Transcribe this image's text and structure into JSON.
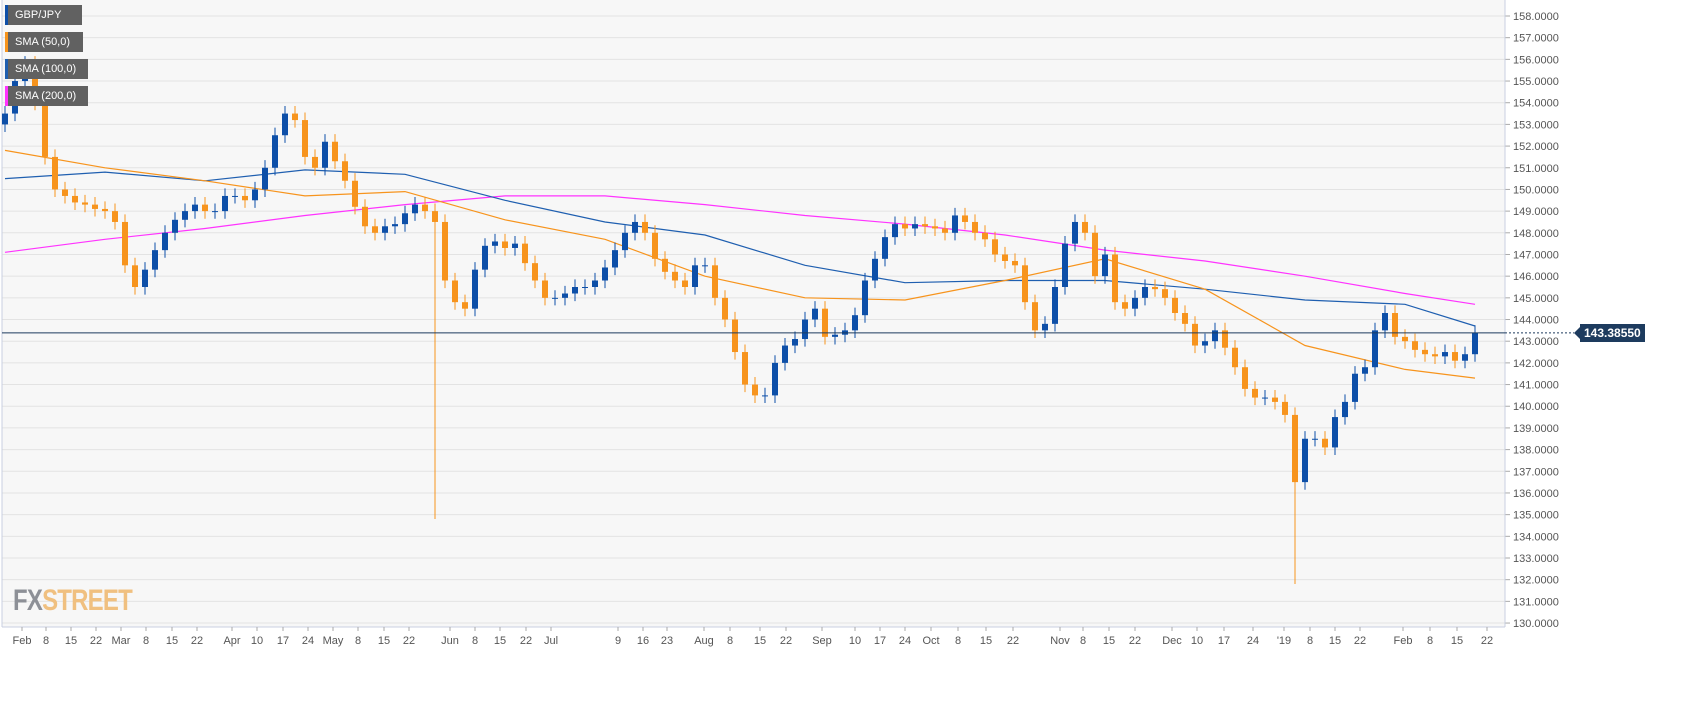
{
  "chart_data": {
    "type": "candlestick",
    "title": "",
    "instrument": "GBP/JPY",
    "legend": [
      {
        "label": "GBP/JPY",
        "color": "#0d4fa8"
      },
      {
        "label": "SMA (50,0)",
        "color": "#f7941d"
      },
      {
        "label": "SMA (100,0)",
        "color": "#1f5fb0"
      },
      {
        "label": "SMA (200,0)",
        "color": "#ff33ff"
      }
    ],
    "legend_placement": "top-left",
    "grid": true,
    "ylim": [
      130,
      158
    ],
    "y_ticks": [
      "130.0000",
      "131.0000",
      "132.0000",
      "133.0000",
      "134.0000",
      "135.0000",
      "136.0000",
      "137.0000",
      "138.0000",
      "139.0000",
      "140.0000",
      "141.0000",
      "142.0000",
      "143.0000",
      "144.0000",
      "145.0000",
      "146.0000",
      "147.0000",
      "148.0000",
      "149.0000",
      "150.0000",
      "151.0000",
      "152.0000",
      "153.0000",
      "154.0000",
      "155.0000",
      "156.0000",
      "157.0000",
      "158.0000"
    ],
    "x_ticks": [
      "Feb",
      "8",
      "15",
      "22",
      "Mar",
      "8",
      "15",
      "22",
      "Apr",
      "10",
      "17",
      "24",
      "May",
      "8",
      "15",
      "22",
      "Jun",
      "8",
      "15",
      "22",
      "Jul",
      "9",
      "16",
      "23",
      "Aug",
      "8",
      "15",
      "22",
      "Sep",
      "10",
      "17",
      "24",
      "Oct",
      "8",
      "15",
      "22",
      "Nov",
      "8",
      "15",
      "22",
      "Dec",
      "10",
      "17",
      "24",
      "'19",
      "8",
      "15",
      "22",
      "Feb",
      "8",
      "15",
      "22"
    ],
    "current_price": "143.38550",
    "colors": {
      "up": "#0d4fa8",
      "down": "#f7941d",
      "sma50": "#f7941d",
      "sma100": "#1f5fb0",
      "sma200": "#ff33ff",
      "price_line": "#1d3b5e"
    },
    "closes": [
      153.5,
      155,
      155.8,
      154,
      151.5,
      150,
      149.7,
      149.4,
      149.3,
      149.1,
      149,
      148.5,
      146.5,
      145.5,
      146.3,
      147.2,
      148,
      148.6,
      149,
      149.3,
      149,
      149,
      149.7,
      149.7,
      149.5,
      150,
      151,
      152.5,
      153.5,
      153.2,
      151.5,
      151,
      152.2,
      151.3,
      150.4,
      149.2,
      148.3,
      148,
      148.3,
      148.4,
      148.9,
      149.3,
      149,
      148.5,
      145.8,
      144.8,
      144.5,
      146.3,
      147.4,
      147.6,
      147.3,
      147.5,
      146.6,
      145.8,
      145,
      145,
      145.2,
      145.5,
      145.5,
      145.8,
      146.4,
      147.2,
      148,
      148.5,
      148,
      146.8,
      146.2,
      145.8,
      145.5,
      146.5,
      146.5,
      145,
      144,
      142.5,
      141,
      140.5,
      140.5,
      142,
      142.8,
      143.1,
      144,
      144.5,
      143.2,
      143.3,
      143.5,
      144.2,
      145.8,
      146.8,
      147.8,
      148.4,
      148.2,
      148.4,
      148.3,
      148.2,
      148,
      148.8,
      148.5,
      148,
      147.7,
      147,
      146.7,
      146.5,
      144.8,
      143.5,
      143.8,
      145.5,
      147.5,
      148.5,
      148,
      146,
      147,
      144.8,
      144.5,
      145,
      145.5,
      145.4,
      145,
      144.3,
      143.8,
      142.8,
      143,
      143.5,
      142.7,
      141.8,
      140.8,
      140.4,
      140.4,
      140.2,
      139.6,
      136.5,
      138.5,
      138.5,
      138.1,
      139.5,
      140.2,
      141.5,
      141.8,
      143.5,
      144.3,
      143.2,
      143,
      142.6,
      142.4,
      142.3,
      142.5,
      142.1,
      142.4,
      143.3855
    ],
    "spike_lows": [
      {
        "date": "May 29",
        "low": 134.8
      },
      {
        "date": "Jan 3",
        "low": 131.8
      }
    ],
    "sma50": [
      151.8,
      151,
      150.4,
      149.7,
      149.9,
      148.6,
      147.7,
      146,
      145,
      144.9,
      145.8,
      146.8,
      145.4,
      142.8,
      141.7,
      141.3
    ],
    "sma100": [
      150.5,
      150.8,
      150.4,
      150.9,
      150.7,
      149.5,
      148.5,
      147.9,
      146.5,
      145.7,
      145.8,
      145.8,
      145.4,
      144.9,
      144.7,
      143.7
    ],
    "sma200": [
      147.1,
      147.7,
      148.2,
      148.8,
      149.3,
      149.7,
      149.7,
      149.3,
      148.8,
      148.4,
      147.9,
      147.2,
      146.7,
      146,
      145.2,
      144.7
    ]
  },
  "watermark": {
    "fx": "FX",
    "street": "STREET"
  }
}
